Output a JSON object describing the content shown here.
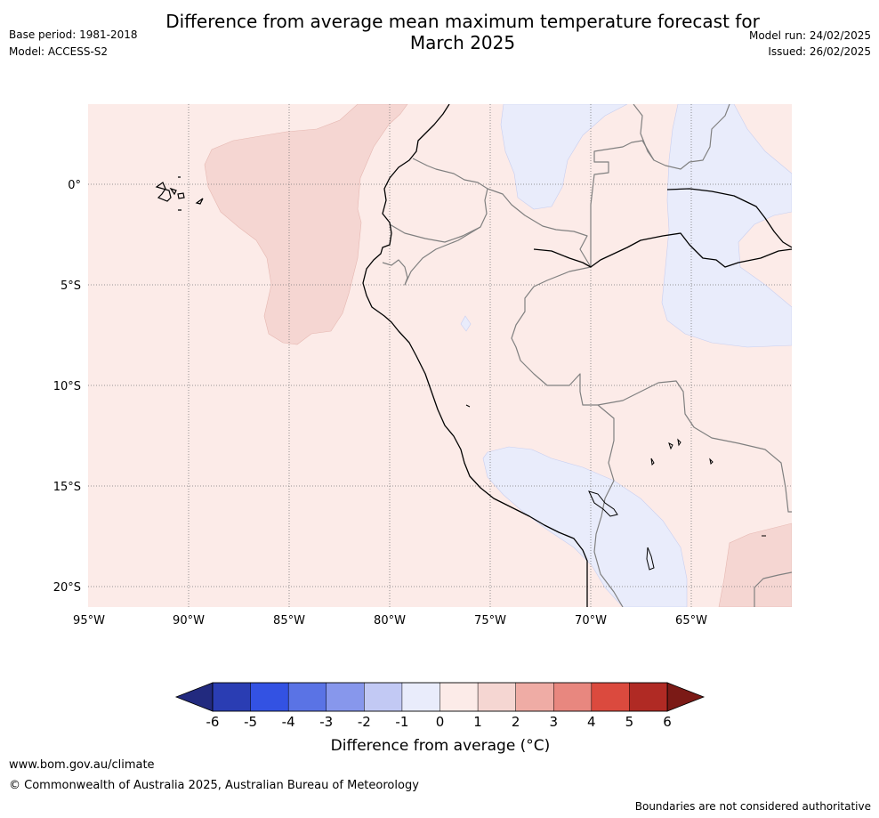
{
  "header": {
    "title_line1": "Difference from average mean maximum temperature forecast for",
    "title_line2": "March 2025",
    "base_period": "Base period: 1981-2018",
    "model": "Model: ACCESS-S2",
    "model_run": "Model run: 24/02/2025",
    "issued": "Issued: 26/02/2025"
  },
  "map": {
    "lon_labels": [
      "95°W",
      "90°W",
      "85°W",
      "80°W",
      "75°W",
      "70°W",
      "65°W"
    ],
    "lat_labels": [
      "0°",
      "5°S",
      "10°S",
      "15°S",
      "20°S"
    ],
    "colors": {
      "weak_warm": "#fcebe8",
      "moderate_warm": "#f5d6d2",
      "weak_cool": "#e9ecfb",
      "coastline": "#000000",
      "border": "#808080"
    }
  },
  "colorbar": {
    "tick_labels": [
      "-6",
      "-5",
      "-4",
      "-3",
      "-2",
      "-1",
      "0",
      "1",
      "2",
      "3",
      "4",
      "5",
      "6"
    ],
    "colors": [
      "#222a7f",
      "#2a3db3",
      "#3352e3",
      "#5a73e5",
      "#8797ec",
      "#c2c9f4",
      "#e9ecfb",
      "#fcebe8",
      "#f5d6d2",
      "#efaca5",
      "#e8877f",
      "#db4a3e",
      "#b02a24",
      "#7b1a16"
    ],
    "label": "Difference from average (°C)"
  },
  "footer": {
    "website": "www.bom.gov.au/climate",
    "copyright": "© Commonwealth of Australia 2025, Australian Bureau of Meteorology",
    "disclaimer": "Boundaries are not considered authoritative"
  }
}
